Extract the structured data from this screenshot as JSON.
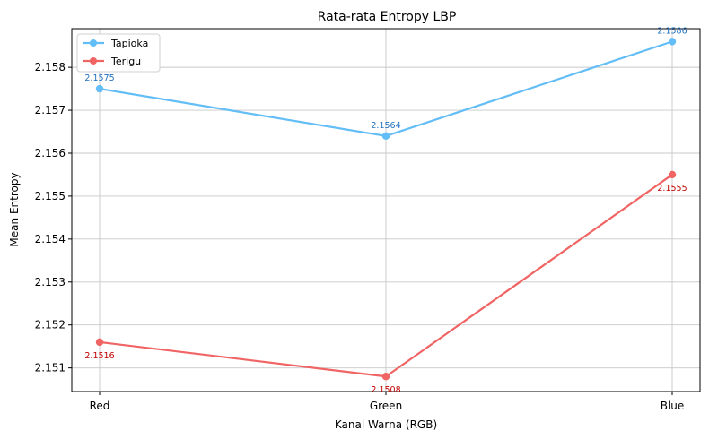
{
  "chart_data": {
    "type": "line",
    "title": "Rata-rata Entropy LBP",
    "xlabel": "Kanal Warna (RGB)",
    "ylabel": "Mean Entropy",
    "categories": [
      "Red",
      "Green",
      "Blue"
    ],
    "ylim": [
      2.15045,
      2.1589
    ],
    "yticks": [
      2.151,
      2.152,
      2.153,
      2.154,
      2.155,
      2.156,
      2.157,
      2.158
    ],
    "ytick_labels": [
      "2.151",
      "2.152",
      "2.153",
      "2.154",
      "2.155",
      "2.156",
      "2.157",
      "2.158"
    ],
    "grid": true,
    "legend_position": "top-left",
    "series": [
      {
        "name": "Tapioka",
        "color": "#63bdf6",
        "label_color": "#1f6fbf",
        "values": [
          2.1575,
          2.1564,
          2.1586
        ],
        "value_labels": [
          "2.1575",
          "2.1564",
          "2.1586"
        ],
        "label_placement": "above"
      },
      {
        "name": "Terigu",
        "color": "#f06464",
        "label_color": "#c00000",
        "values": [
          2.1516,
          2.1508,
          2.1555
        ],
        "value_labels": [
          "2.1516",
          "2.1508",
          "2.1555"
        ],
        "label_placement": "below"
      }
    ]
  }
}
